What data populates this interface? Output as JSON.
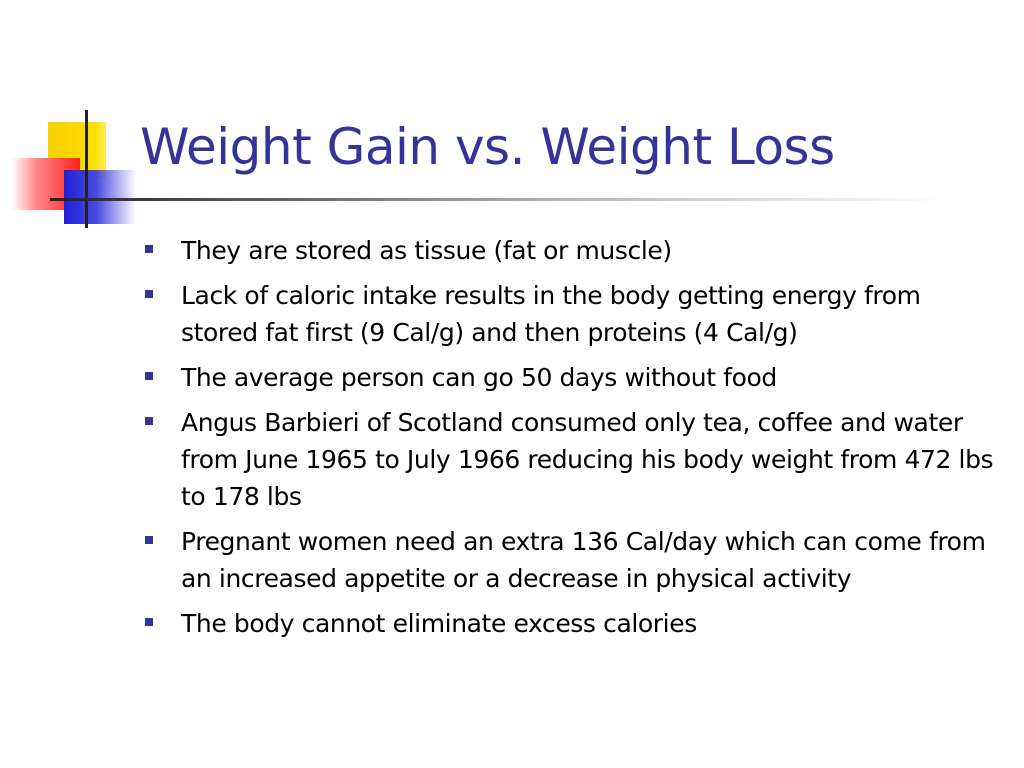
{
  "slide": {
    "title": "Weight Gain vs. Weight Loss",
    "bullets": [
      "They are stored as tissue (fat or muscle)",
      "Lack of caloric intake results in the body getting energy from stored fat first (9 Cal/g) and then proteins (4 Cal/g)",
      "The average person can go 50 days without food",
      "Angus Barbieri of Scotland consumed only tea, coffee and water from June 1965 to July 1966 reducing his body weight from 472 lbs to 178 lbs",
      "Pregnant women need an extra 136 Cal/day which can come from an increased appetite or a decrease in physical activity",
      "The body cannot eliminate excess calories"
    ]
  },
  "colors": {
    "title": "#333399",
    "bullet_marker": "#333399",
    "body_text": "#000000",
    "accent_yellow": "#fce100",
    "accent_red": "#ff1f1f",
    "accent_blue": "#1f1fd6"
  }
}
